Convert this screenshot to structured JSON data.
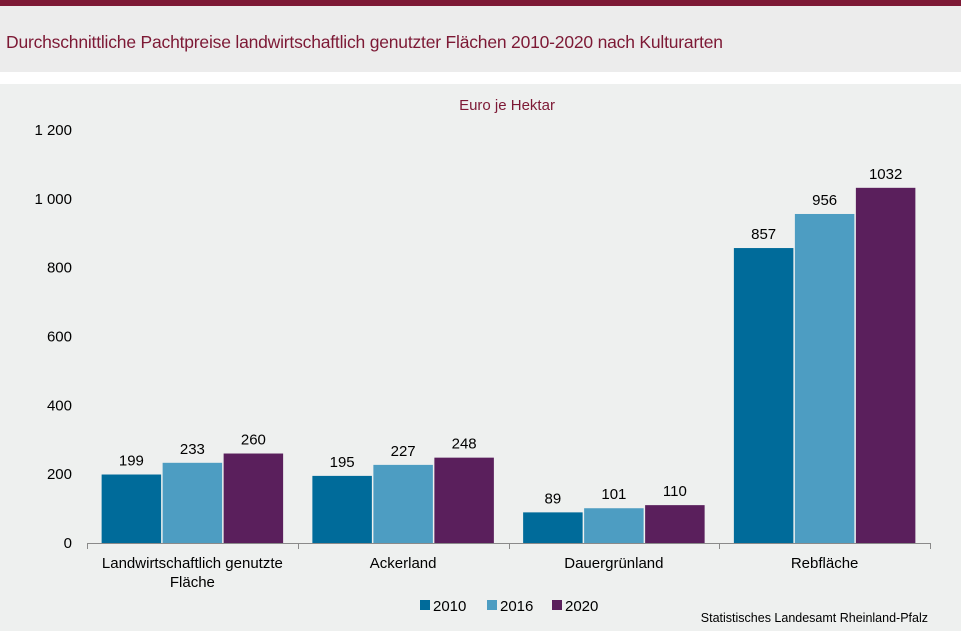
{
  "page": {
    "title": "Durchschnittliche Pachtpreise landwirtschaftlich genutzter Flächen 2010-2020 nach Kulturarten",
    "source": "Statistisches Landesamt Rheinland-Pfalz"
  },
  "colors": {
    "accent": "#7d1935",
    "series_2010": "#006b9a",
    "series_2016": "#4d9dc2",
    "series_2020": "#5a1f5c"
  },
  "chart_data": {
    "type": "bar",
    "subtitle": "Euro je Hektar",
    "categories": [
      [
        "Landwirtschaftlich genutzte",
        "Fläche"
      ],
      [
        "Ackerland"
      ],
      [
        "Dauergrünland"
      ],
      [
        "Rebfläche"
      ]
    ],
    "series": [
      {
        "name": "2010",
        "values": [
          199,
          195,
          89,
          857
        ],
        "color": "#006b9a"
      },
      {
        "name": "2016",
        "values": [
          233,
          227,
          101,
          956
        ],
        "color": "#4d9dc2"
      },
      {
        "name": "2020",
        "values": [
          260,
          248,
          110,
          1032
        ],
        "color": "#5a1f5c"
      }
    ],
    "ylim": [
      0,
      1200
    ],
    "yticks": [
      0,
      200,
      400,
      600,
      800,
      1000,
      1200
    ],
    "ytick_labels": [
      "0",
      "200",
      "400",
      "600",
      "800",
      "1 000",
      "1 200"
    ],
    "grid": false,
    "legend_position": "bottom-center",
    "data_labels": true
  }
}
